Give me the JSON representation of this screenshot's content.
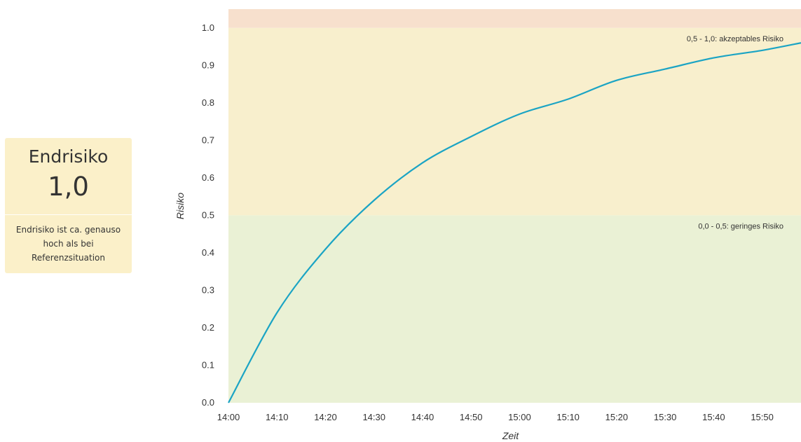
{
  "summary_card": {
    "title": "Endrisiko",
    "value": "1,0",
    "description": "Endrisiko ist ca. genauso hoch als bei Referenzsituation"
  },
  "colors": {
    "card_background": "#fbf0c9",
    "band_low": "#eaf1d5",
    "band_acceptable": "#f8efcd",
    "band_high": "#f7e0cd",
    "line": "#1ba4c4",
    "text": "#333333"
  },
  "chart_data": {
    "type": "line",
    "title": "",
    "xlabel": "Zeit",
    "ylabel": "Risiko",
    "ylim": [
      0,
      1.05
    ],
    "yticks": [
      "0.0",
      "0.1",
      "0.2",
      "0.3",
      "0.4",
      "0.5",
      "0.6",
      "0.7",
      "0.8",
      "0.9",
      "1.0"
    ],
    "xticks": [
      "14:00",
      "14:10",
      "14:20",
      "14:30",
      "14:40",
      "14:50",
      "15:00",
      "15:10",
      "15:20",
      "15:30",
      "15:40",
      "15:50"
    ],
    "xlim": [
      "14:00",
      "15:58"
    ],
    "grid": false,
    "bands": [
      {
        "from": 0,
        "to": 0.5,
        "label": "0,0 - 0,5: geringes Risiko",
        "color": "#eaf1d5"
      },
      {
        "from": 0.5,
        "to": 1.0,
        "label": "0,5 - 1,0: akzeptables Risiko",
        "color": "#f8efcd"
      },
      {
        "from": 1.0,
        "to": 1.05,
        "label": "",
        "color": "#f7e0cd"
      }
    ],
    "series": [
      {
        "x": [
          "14:00",
          "14:10",
          "14:20",
          "14:30",
          "14:40",
          "14:50",
          "15:00",
          "15:10",
          "15:20",
          "15:30",
          "15:40",
          "15:50",
          "15:58"
        ],
        "values": [
          0.0,
          0.24,
          0.41,
          0.54,
          0.64,
          0.71,
          0.77,
          0.81,
          0.86,
          0.89,
          0.92,
          0.94,
          0.96
        ]
      }
    ]
  }
}
